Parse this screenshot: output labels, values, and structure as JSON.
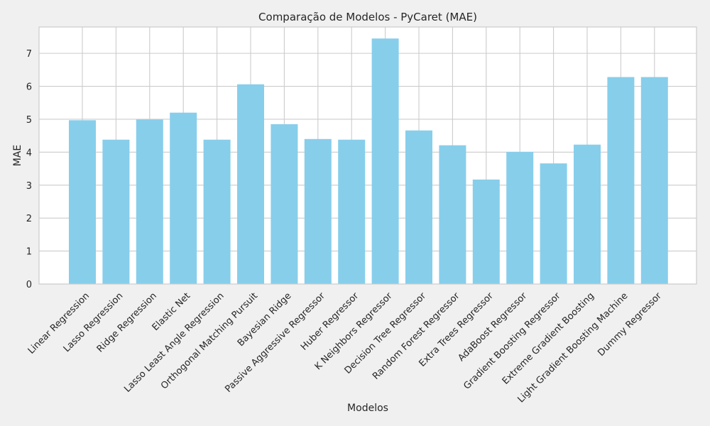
{
  "chart_data": {
    "type": "bar",
    "title": "Comparação de Modelos - PyCaret (MAE)",
    "xlabel": "Modelos",
    "ylabel": "MAE",
    "ylim": [
      0,
      7.8
    ],
    "yticks": [
      0,
      1,
      2,
      3,
      4,
      5,
      6,
      7
    ],
    "grid": true,
    "bar_color": "#87ceeb",
    "background_color": "#f0f0f0",
    "plot_background_color": "#ffffff",
    "grid_color": "#cccccc",
    "categories": [
      "Linear Regression",
      "Lasso Regression",
      "Ridge Regression",
      "Elastic Net",
      "Lasso Least Angle Regression",
      "Orthogonal Matching Pursuit",
      "Bayesian Ridge",
      "Passive Aggressive Regressor",
      "Huber Regressor",
      "K Neighbors Regressor",
      "Decision Tree Regressor",
      "Random Forest Regressor",
      "Extra Trees Regressor",
      "AdaBoost Regressor",
      "Gradient Boosting Regressor",
      "Extreme Gradient Boosting",
      "Light Gradient Boosting Machine",
      "Dummy Regressor"
    ],
    "values": [
      4.97,
      4.38,
      4.99,
      5.2,
      4.38,
      6.06,
      4.85,
      4.4,
      4.38,
      7.45,
      4.66,
      4.21,
      3.17,
      4.01,
      3.66,
      4.23,
      6.28,
      6.28
    ]
  }
}
